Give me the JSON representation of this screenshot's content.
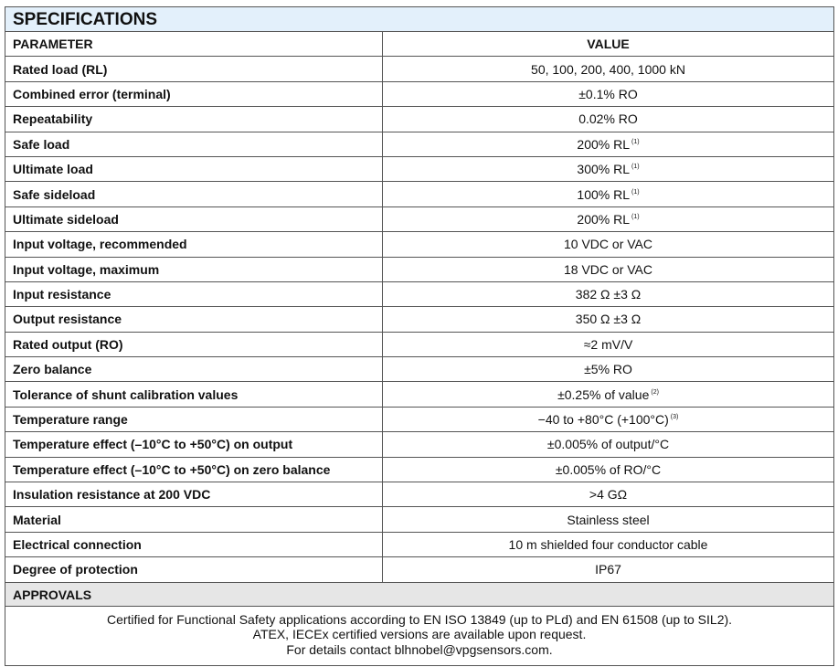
{
  "title": "SPECIFICATIONS",
  "header": {
    "parameter": "PARAMETER",
    "value": "VALUE"
  },
  "rows": [
    {
      "parameter": "Rated load (RL)",
      "value": "50, 100, 200, 400, 1000 kN",
      "note": ""
    },
    {
      "parameter": "Combined error (terminal)",
      "value": "±0.1% RO",
      "note": ""
    },
    {
      "parameter": "Repeatability",
      "value": "0.02% RO",
      "note": ""
    },
    {
      "parameter": "Safe load",
      "value": "200% RL",
      "note": "(1)"
    },
    {
      "parameter": "Ultimate load",
      "value": "300% RL",
      "note": "(1)"
    },
    {
      "parameter": "Safe sideload",
      "value": "100% RL",
      "note": "(1)"
    },
    {
      "parameter": "Ultimate sideload",
      "value": "200% RL",
      "note": "(1)"
    },
    {
      "parameter": "Input voltage, recommended",
      "value": "10 VDC or VAC",
      "note": ""
    },
    {
      "parameter": "Input voltage, maximum",
      "value": "18 VDC or VAC",
      "note": ""
    },
    {
      "parameter": "Input resistance",
      "value": "382 Ω ±3 Ω",
      "note": ""
    },
    {
      "parameter": "Output resistance",
      "value": "350 Ω ±3 Ω",
      "note": ""
    },
    {
      "parameter": "Rated output (RO)",
      "value": "≈2 mV/V",
      "note": ""
    },
    {
      "parameter": "Zero balance",
      "value": "±5% RO",
      "note": ""
    },
    {
      "parameter": "Tolerance of shunt calibration values",
      "value": "±0.25% of value",
      "note": "(2)"
    },
    {
      "parameter": "Temperature range",
      "value": "−40 to +80°C (+100°C)",
      "note": "(3)"
    },
    {
      "parameter": "Temperature effect (–10°C to +50°C) on output",
      "value": "±0.005% of output/°C",
      "note": ""
    },
    {
      "parameter": "Temperature effect (–10°C to +50°C) on zero balance",
      "value": "±0.005% of RO/°C",
      "note": ""
    },
    {
      "parameter": "Insulation resistance at 200 VDC",
      "value": ">4 GΩ",
      "note": ""
    },
    {
      "parameter": "Material",
      "value": "Stainless steel",
      "note": ""
    },
    {
      "parameter": "Electrical connection",
      "value": "10 m shielded four conductor cable",
      "note": ""
    },
    {
      "parameter": "Degree of protection",
      "value": "IP67",
      "note": ""
    }
  ],
  "approvals": {
    "title": "APPROVALS",
    "lines": [
      "Certified for Functional Safety applications according to EN ISO 13849 (up to PLd) and EN 61508 (up to SIL2).",
      "ATEX, IECEx certified versions are available upon request.",
      "For details contact blhnobel@vpgsensors.com."
    ]
  },
  "colors": {
    "title_bg": "#e3f0fb",
    "approvals_bg": "#e6e6e6",
    "border": "#555555"
  }
}
